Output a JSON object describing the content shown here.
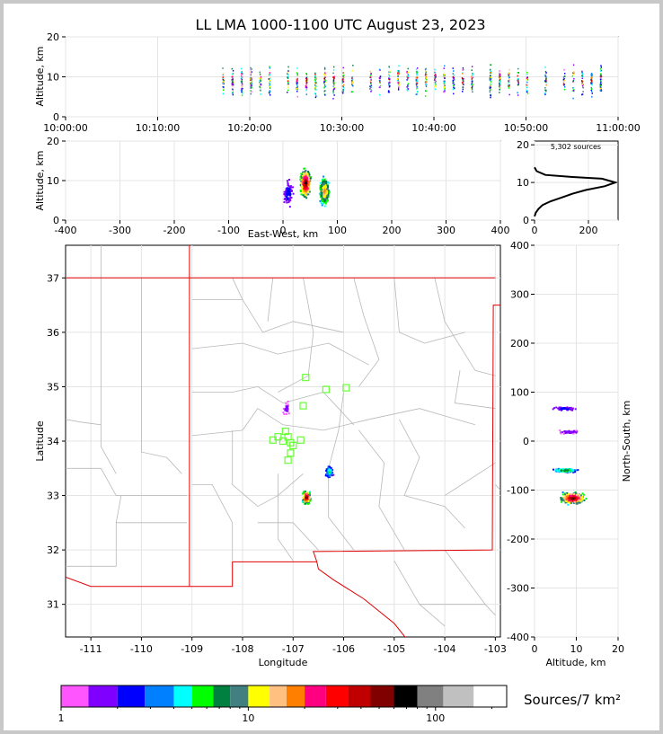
{
  "title": "LL LMA 1000-1100 UTC August 23, 2023",
  "source_count": "5,302 sources",
  "colorbar_label": "Sources/7 km²",
  "colors": {
    "border": "#e00000",
    "county": "#b8b8b8",
    "station": "#66ff33",
    "grid": "#e4e4e4"
  },
  "chart_data": [
    {
      "type": "scatter",
      "name": "time-height",
      "xlabel": "",
      "ylabel": "Altitude, km",
      "x_ticks": [
        "10:00:00",
        "10:10:00",
        "10:20:00",
        "10:30:00",
        "10:40:00",
        "10:50:00",
        "11:00:00"
      ],
      "xlim": [
        "10:00:00",
        "11:00:00"
      ],
      "ylim": [
        0,
        20
      ],
      "y_ticks": [
        0,
        10,
        20
      ],
      "flash_times": [
        "10:17",
        "10:18",
        "10:19",
        "10:20",
        "10:21",
        "10:22",
        "10:24",
        "10:25",
        "10:26",
        "10:27",
        "10:28",
        "10:29",
        "10:30",
        "10:31",
        "10:33",
        "10:34",
        "10:35",
        "10:36",
        "10:37",
        "10:38",
        "10:39",
        "10:40",
        "10:41",
        "10:42",
        "10:43",
        "10:44",
        "10:46",
        "10:47",
        "10:48",
        "10:49",
        "10:50",
        "10:52",
        "10:54",
        "10:55",
        "10:56",
        "10:57",
        "10:58"
      ]
    },
    {
      "type": "scatter",
      "name": "east-west-height",
      "xlabel": "East-West, km",
      "ylabel": "Altitude, km",
      "xlim": [
        -400,
        400
      ],
      "x_ticks": [
        -400,
        -300,
        -200,
        -100,
        0,
        100,
        200,
        300,
        400
      ],
      "ylim": [
        0,
        20
      ],
      "y_ticks": [
        0,
        10,
        20
      ],
      "clusters": [
        {
          "x": 40,
          "y": 9.5,
          "count": 520
        },
        {
          "x": 75,
          "y": 7.5,
          "count": 360
        },
        {
          "x": 8,
          "y": 7,
          "count": 90
        }
      ]
    },
    {
      "type": "line",
      "name": "altitude-histogram",
      "title": "5,302 sources",
      "x_ticks": [
        0,
        200
      ],
      "xlim": [
        0,
        310
      ],
      "y_ticks": [
        0,
        10,
        20
      ],
      "ylim": [
        0,
        21
      ],
      "points": [
        [
          0,
          1
        ],
        [
          5,
          2
        ],
        [
          15,
          3
        ],
        [
          30,
          4
        ],
        [
          60,
          5
        ],
        [
          100,
          6
        ],
        [
          140,
          7
        ],
        [
          190,
          8
        ],
        [
          260,
          9
        ],
        [
          300,
          10
        ],
        [
          250,
          11
        ],
        [
          130,
          11.5
        ],
        [
          40,
          12
        ],
        [
          8,
          13
        ],
        [
          0,
          14
        ]
      ]
    },
    {
      "type": "scatter",
      "name": "plan-view",
      "xlabel": "Longitude",
      "ylabel": "Latitude",
      "xlim": [
        -111.5,
        -102.9
      ],
      "ylim": [
        30.4,
        37.6
      ],
      "x_ticks": [
        -111,
        -110,
        -109,
        -108,
        -107,
        -106,
        -105,
        -104,
        -103
      ],
      "y_ticks": [
        31,
        32,
        33,
        34,
        35,
        36,
        37
      ],
      "stations": [
        [
          -106.75,
          35.17
        ],
        [
          -106.35,
          34.95
        ],
        [
          -105.95,
          34.98
        ],
        [
          -106.8,
          34.65
        ],
        [
          -107.15,
          34.18
        ],
        [
          -107.1,
          34.08
        ],
        [
          -107.3,
          34.08
        ],
        [
          -107.4,
          34.02
        ],
        [
          -107.2,
          34.0
        ],
        [
          -107.05,
          33.97
        ],
        [
          -107.0,
          33.92
        ],
        [
          -106.85,
          34.02
        ],
        [
          -107.05,
          33.78
        ],
        [
          -107.1,
          33.65
        ]
      ],
      "clusters": [
        {
          "lon": -106.75,
          "lat": 32.98,
          "count": 260
        },
        {
          "lon": -106.3,
          "lat": 33.45,
          "count": 90
        },
        {
          "lon": -107.15,
          "lat": 34.62,
          "count": 25
        }
      ]
    },
    {
      "type": "scatter",
      "name": "north-south-height",
      "xlabel": "Altitude, km",
      "ylabel": "North-South, km",
      "xlim": [
        0,
        20
      ],
      "x_ticks": [
        0,
        10,
        20
      ],
      "ylim": [
        -400,
        400
      ],
      "y_ticks": [
        -400,
        -300,
        -200,
        -100,
        0,
        100,
        200,
        300,
        400
      ],
      "clusters": [
        {
          "alt": 9,
          "ns": -115,
          "count": 420
        },
        {
          "alt": 7,
          "ns": -58,
          "count": 200
        },
        {
          "alt": 7,
          "ns": 68,
          "count": 70
        },
        {
          "alt": 8,
          "ns": 20,
          "count": 50
        }
      ]
    },
    {
      "type": "heatmap",
      "name": "colorbar",
      "title": "Sources/7 km²",
      "tick_labels": [
        "1",
        "10",
        "100"
      ],
      "colors": [
        "#ff55ff",
        "#8000ff",
        "#0000ff",
        "#0080ff",
        "#00ffff",
        "#00ff00",
        "#008040",
        "#408080",
        "#ffff00",
        "#ffc080",
        "#ff8000",
        "#ff0080",
        "#ff0000",
        "#c00000",
        "#800000",
        "#000000",
        "#808080",
        "#c0c0c0",
        "#ffffff"
      ]
    }
  ]
}
